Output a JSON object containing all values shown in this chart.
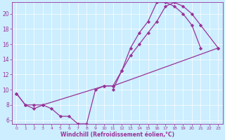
{
  "xlabel": "Windchill (Refroidissement éolien,°C)",
  "bg_color": "#cceeff",
  "grid_color": "#aaddcc",
  "line_color": "#993399",
  "marker": "D",
  "markersize": 2.2,
  "linewidth": 0.9,
  "xlim": [
    -0.5,
    23.5
  ],
  "ylim": [
    5.5,
    21.5
  ],
  "yticks": [
    6,
    8,
    10,
    12,
    14,
    16,
    18,
    20
  ],
  "xticks": [
    0,
    1,
    2,
    3,
    4,
    5,
    6,
    7,
    8,
    9,
    10,
    11,
    12,
    13,
    14,
    15,
    16,
    17,
    18,
    19,
    20,
    21,
    22,
    23
  ],
  "series": [
    {
      "x": [
        0,
        1,
        2,
        3,
        4,
        5,
        6,
        7,
        8,
        9,
        10,
        11,
        12,
        13,
        14,
        15,
        16,
        17,
        18,
        19,
        20,
        21
      ],
      "y": [
        9.5,
        8.0,
        7.5,
        8.0,
        7.5,
        6.5,
        6.5,
        5.5,
        5.5,
        10.0,
        10.5,
        10.5,
        12.5,
        15.5,
        17.5,
        19.0,
        21.5,
        21.5,
        21.0,
        20.0,
        18.5,
        15.5
      ]
    },
    {
      "x": [
        0,
        1,
        2,
        3,
        10,
        11,
        23
      ],
      "y": [
        9.5,
        8.0,
        8.0,
        8.0,
        10.5,
        10.5,
        15.5
      ]
    },
    {
      "x": [
        11,
        12,
        13,
        14,
        15,
        16,
        17,
        18,
        19,
        20,
        21,
        23
      ],
      "y": [
        10.0,
        12.5,
        14.5,
        16.0,
        17.5,
        19.0,
        21.0,
        21.5,
        21.0,
        20.0,
        18.5,
        15.5
      ]
    }
  ]
}
